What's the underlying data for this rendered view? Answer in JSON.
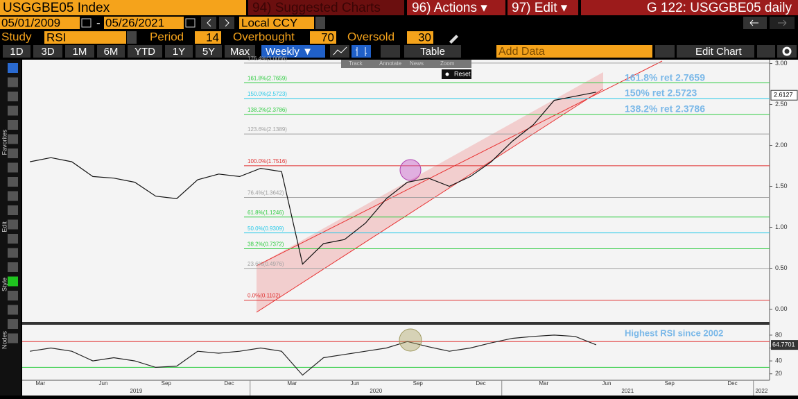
{
  "header": {
    "security": "USGGBE05 Index",
    "suggested": "94) Suggested Charts",
    "actions": "96) Actions ▾",
    "edit": "97) Edit ▾",
    "chart_id": "G 122: USGGBE05 daily"
  },
  "toolbar": {
    "start_date": "05/01/2009",
    "date_separator": "-",
    "end_date": "05/26/2021",
    "currency": "Local CCY",
    "study_label": "Study",
    "study": "RSI",
    "period_label": "Period",
    "period": 14,
    "overbought_label": "Overbought",
    "overbought": 70,
    "oversold_label": "Oversold",
    "oversold": 30,
    "ranges": [
      "1D",
      "3D",
      "1M",
      "6M",
      "YTD",
      "1Y",
      "5Y",
      "Max"
    ],
    "frequency": "Weekly ▼",
    "table": "Table",
    "add_data": "Add Data",
    "edit_chart": "Edit Chart"
  },
  "overlay": {
    "buttons": [
      "Track",
      "Annotate",
      "News",
      "Zoom"
    ],
    "reset": "Reset"
  },
  "side_labels": [
    "Favorites",
    "Edit",
    "Style",
    "Nodes"
  ],
  "chart_data": {
    "type": "line",
    "categories": [
      null,
      "Mar",
      null,
      null,
      "Jun",
      null,
      null,
      "Sep",
      null,
      null,
      "Dec",
      null,
      null,
      "Mar",
      null,
      null,
      "Jun",
      null,
      null,
      "Sep",
      null,
      null,
      "Dec",
      null,
      null,
      "Mar",
      null,
      null,
      "Jun",
      null,
      null,
      "Sep",
      null,
      null,
      "Dec",
      null,
      null
    ],
    "x_years": [
      "2019",
      null,
      null,
      null,
      null,
      null,
      null,
      null,
      null,
      null,
      null,
      "2020",
      null,
      null,
      null,
      null,
      null,
      null,
      null,
      null,
      null,
      null,
      null,
      "2021",
      null,
      null,
      null,
      null,
      null,
      null,
      null,
      null,
      null,
      null,
      null,
      "2022",
      null
    ],
    "values": [
      1.8,
      1.85,
      1.8,
      1.62,
      1.6,
      1.55,
      1.38,
      1.35,
      1.58,
      1.65,
      1.62,
      1.72,
      1.68,
      0.55,
      0.8,
      0.85,
      1.05,
      1.35,
      1.55,
      1.6,
      1.5,
      1.62,
      1.8,
      2.05,
      2.25,
      2.55,
      2.6,
      2.65,
      null,
      null,
      null,
      null,
      null,
      null,
      null,
      null,
      null
    ],
    "color": "#111111",
    "ylim": [
      -0.14,
      3.03
    ],
    "yticks": [
      {
        "value": 0,
        "label": "0.00"
      },
      {
        "value": 0.5,
        "label": "0.50"
      },
      {
        "value": 1,
        "label": "1.00"
      },
      {
        "value": 1.5,
        "label": "1.50"
      },
      {
        "value": 2,
        "label": "2.00"
      },
      {
        "value": 2.5,
        "label": "2.50"
      },
      {
        "value": 3,
        "label": "3.00"
      }
    ],
    "last_value": {
      "value": 2.6127,
      "label": "2.6127"
    },
    "fib_levels": [
      {
        "value": 3.0056,
        "label": "176.4%(3.0056)",
        "color": "#a0a0a0"
      },
      {
        "value": 2.7659,
        "label": "161.8%(2.7659)",
        "color": "#2ecc40"
      },
      {
        "value": 2.5723,
        "label": "150.0%(2.5723)",
        "color": "#22c8e8"
      },
      {
        "value": 2.3786,
        "label": "138.2%(2.3786)",
        "color": "#2ecc40"
      },
      {
        "value": 2.1389,
        "label": "123.6%(2.1389)",
        "color": "#a0a0a0"
      },
      {
        "value": 1.7516,
        "label": "100.0%(1.7516)",
        "color": "#e03030"
      },
      {
        "value": 1.3642,
        "label": "76.4%(1.3642)",
        "color": "#a0a0a0"
      },
      {
        "value": 1.1246,
        "label": "61.8%(1.1246)",
        "color": "#2ecc40"
      },
      {
        "value": 0.9309,
        "label": "50.0%(0.9309)",
        "color": "#22c8e8"
      },
      {
        "value": 0.7372,
        "label": "38.2%(0.7372)",
        "color": "#2ecc40"
      },
      {
        "value": 0.4976,
        "label": "23.6%(0.4976)",
        "color": "#a0a0a0"
      },
      {
        "value": 0.1102,
        "label": "0.0%(0.1102)",
        "color": "#e03030"
      }
    ],
    "annotations": [
      "161.8% ret 2.7659",
      "150% ret 2.5723",
      "138.2% ret 2.3786"
    ],
    "rsi": {
      "values": [
        55,
        60,
        55,
        40,
        45,
        40,
        30,
        32,
        55,
        52,
        55,
        60,
        55,
        18,
        45,
        50,
        55,
        60,
        70,
        62,
        55,
        60,
        68,
        75,
        78,
        80,
        78,
        65,
        null,
        null,
        null,
        null,
        null,
        null,
        null,
        null,
        null
      ],
      "color": "#222222",
      "ylim": [
        10,
        95
      ],
      "yticks": [
        20,
        40,
        60,
        80
      ],
      "last_value": {
        "value": 64.7701,
        "label": "64.7701"
      },
      "annotation": "Highest RSI since 2002"
    }
  }
}
